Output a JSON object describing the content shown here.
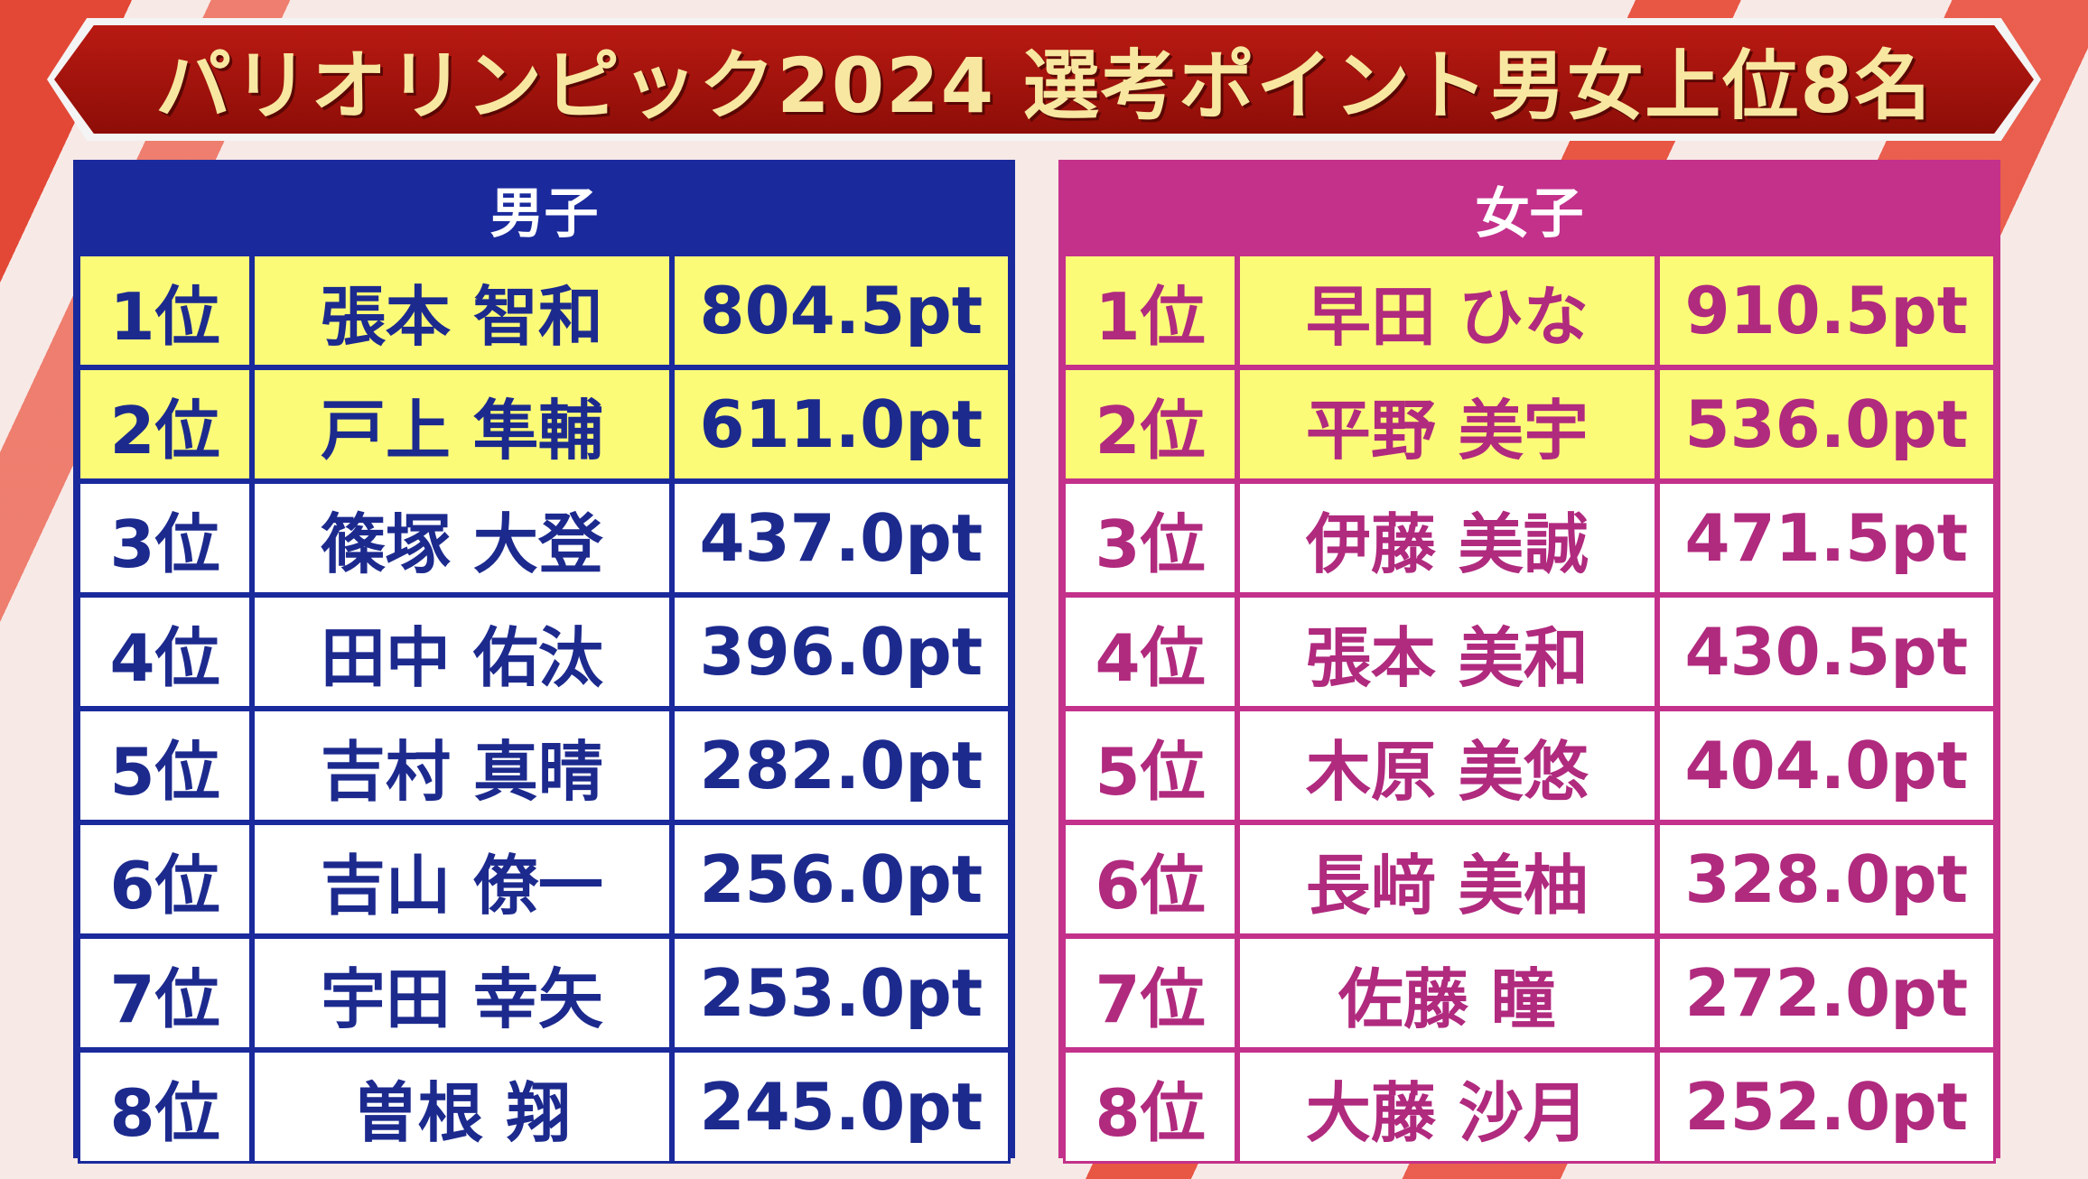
{
  "header": {
    "title": "パリオリンピック2024 選考ポイント男女上位8名"
  },
  "tables": [
    {
      "heading": "男子",
      "rows": [
        [
          "1位",
          "張本 智和",
          "804.5pt"
        ],
        [
          "2位",
          "戸上 隼輔",
          "611.0pt"
        ],
        [
          "3位",
          "篠塚 大登",
          "437.0pt"
        ],
        [
          "4位",
          "田中 佑汰",
          "396.0pt"
        ],
        [
          "5位",
          "吉村 真晴",
          "282.0pt"
        ],
        [
          "6位",
          "吉山 僚一",
          "256.0pt"
        ],
        [
          "7位",
          "宇田 幸矢",
          "253.0pt"
        ],
        [
          "8位",
          "曽根 翔",
          "245.0pt"
        ]
      ]
    },
    {
      "heading": "女子",
      "rows": [
        [
          "1位",
          "早田 ひな",
          "910.5pt"
        ],
        [
          "2位",
          "平野 美宇",
          "536.0pt"
        ],
        [
          "3位",
          "伊藤 美誠",
          "471.5pt"
        ],
        [
          "4位",
          "張本 美和",
          "430.5pt"
        ],
        [
          "5位",
          "木原 美悠",
          "404.0pt"
        ],
        [
          "6位",
          "長﨑 美柚",
          "328.0pt"
        ],
        [
          "7位",
          "佐藤 瞳",
          "272.0pt"
        ],
        [
          "8位",
          "大藤 沙月",
          "252.0pt"
        ]
      ]
    }
  ]
}
